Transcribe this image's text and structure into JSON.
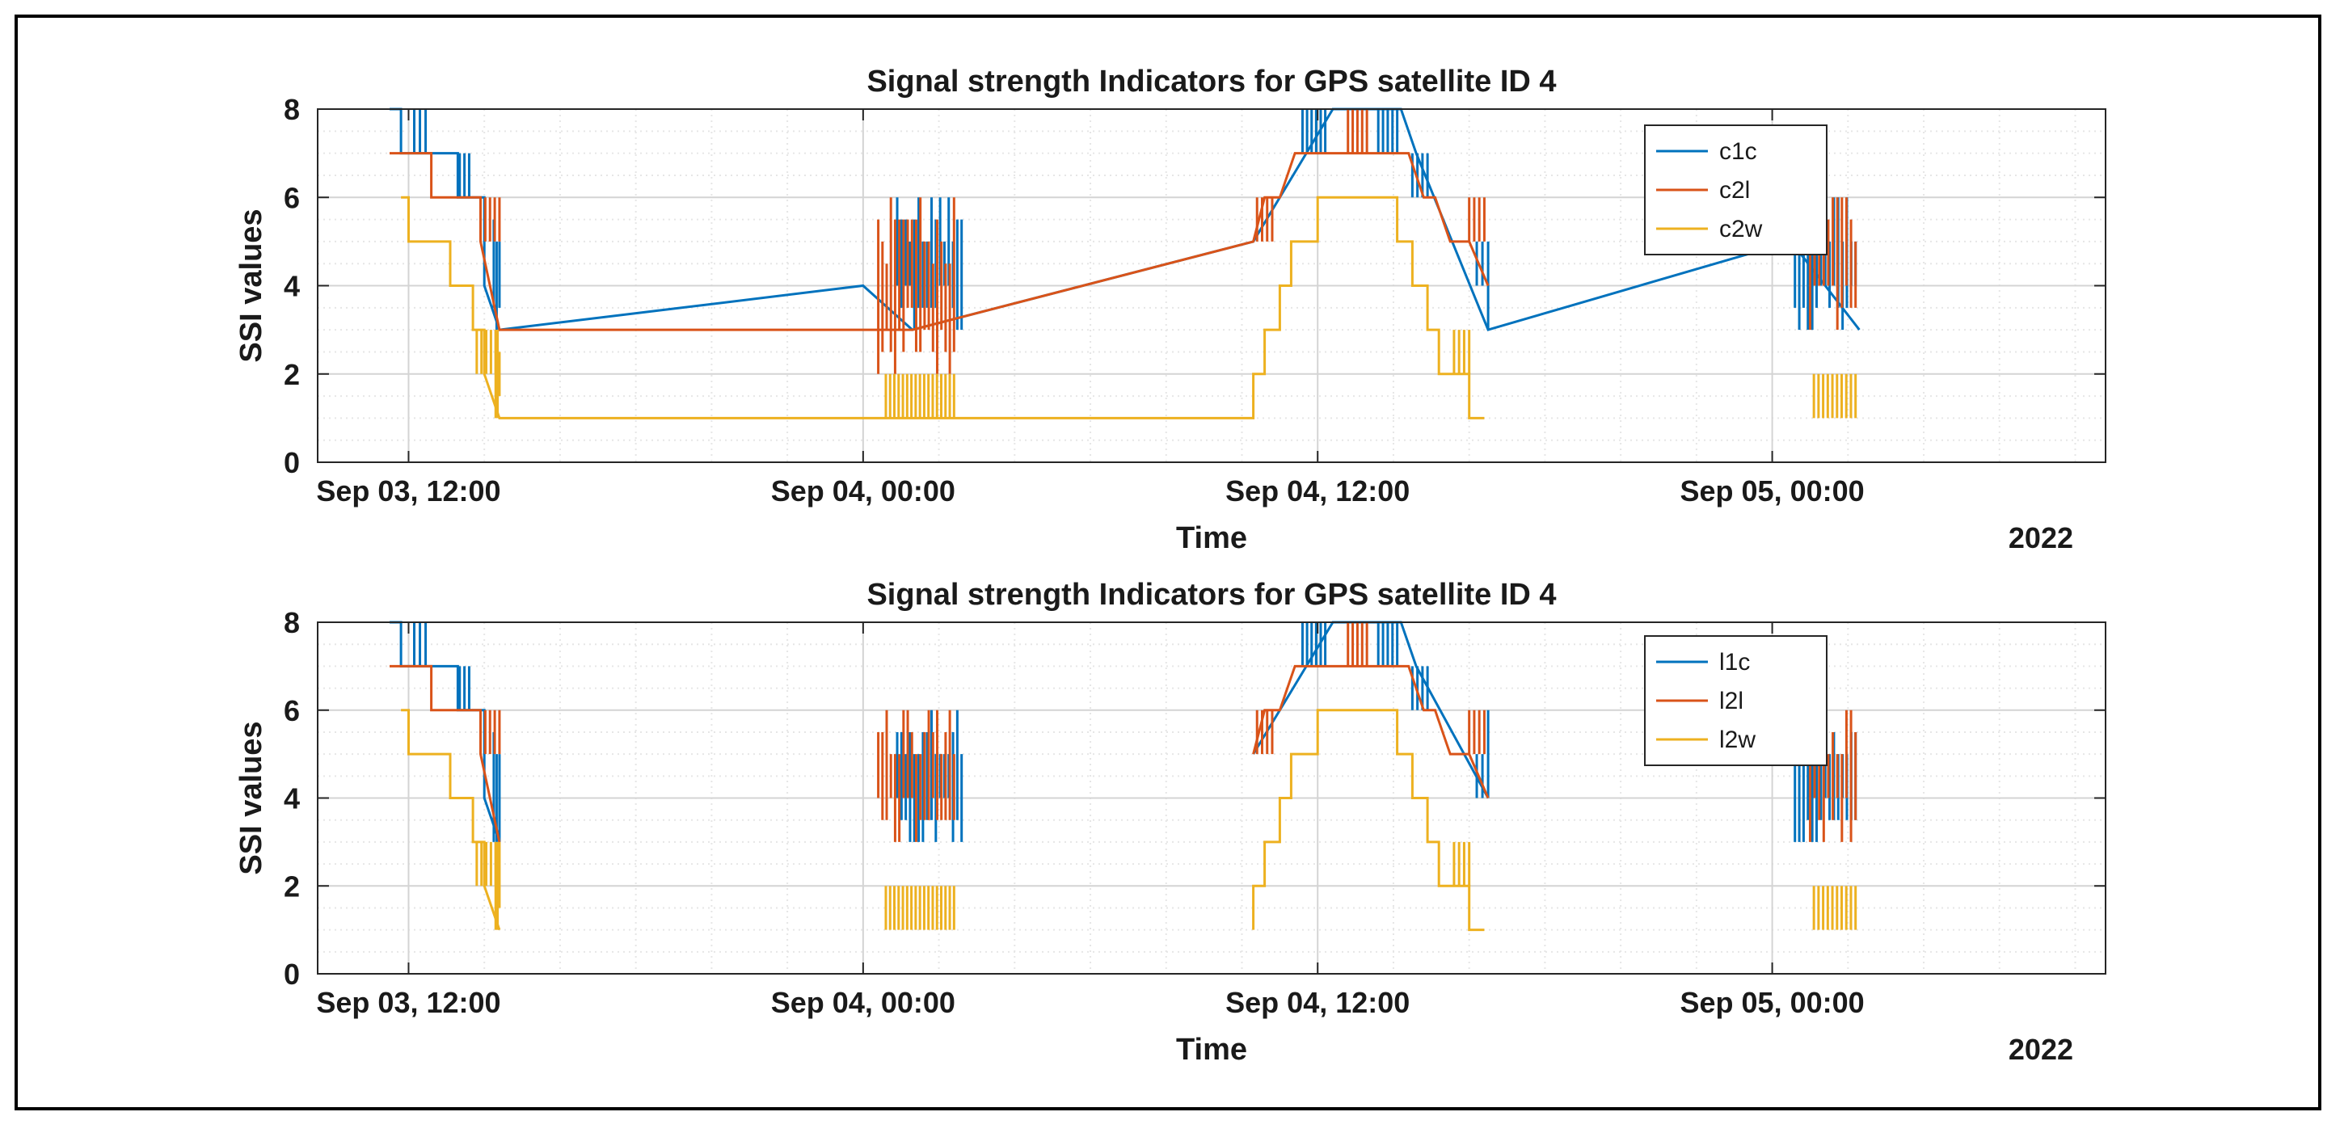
{
  "colors": {
    "c1": "#0072BD",
    "c2": "#D95319",
    "c3": "#EDB120",
    "grid": "#d4d4d4",
    "minorGrid": "#e6e6e6",
    "axis": "#262626"
  },
  "chart_data": [
    {
      "type": "line",
      "title": "Signal strength Indicators for GPS satellite ID 4",
      "xlabel": "Time",
      "ylabel": "SSI values",
      "year_label": "2022",
      "x_units": "hours since Sep 03, 00:00",
      "xlim": [
        9.6,
        56.8
      ],
      "ylim": [
        0,
        8
      ],
      "y_ticks": [
        0,
        2,
        4,
        6,
        8
      ],
      "x_ticks": [
        {
          "value": 12,
          "label": "Sep 03, 12:00"
        },
        {
          "value": 24,
          "label": "Sep 04, 00:00"
        },
        {
          "value": 36,
          "label": "Sep 04, 12:00"
        },
        {
          "value": 48,
          "label": "Sep 05, 00:00"
        }
      ],
      "series": [
        {
          "name": "c1c",
          "color_key": "c1",
          "x": [
            11.5,
            11.8,
            11.8,
            12.9,
            12.9,
            13.3,
            13.3,
            14.0,
            14.0,
            14.4,
            24.0,
            25.3,
            34.3,
            36.4,
            37.2,
            38.2,
            38.6,
            40.5,
            48.5,
            50.3
          ],
          "y": [
            8,
            8,
            7,
            7,
            7,
            7,
            6,
            6,
            4,
            3,
            4,
            3,
            5,
            8,
            8,
            8,
            7,
            3,
            5,
            3
          ],
          "bursts": [
            {
              "x0": 12.15,
              "x1": 12.45,
              "min": 7,
              "max": 8
            },
            {
              "x0": 13.35,
              "x1": 13.6,
              "min": 6,
              "max": 7
            },
            {
              "x0": 14.25,
              "x1": 14.4,
              "min": 3,
              "max": 6
            },
            {
              "x0": 24.9,
              "x1": 26.6,
              "min": 3,
              "max": 6
            },
            {
              "x0": 35.6,
              "x1": 36.2,
              "min": 7,
              "max": 8
            },
            {
              "x0": 37.6,
              "x1": 38.1,
              "min": 7,
              "max": 8
            },
            {
              "x0": 38.5,
              "x1": 38.9,
              "min": 6,
              "max": 7
            },
            {
              "x0": 40.2,
              "x1": 40.5,
              "min": 3,
              "max": 6
            },
            {
              "x0": 48.6,
              "x1": 50.2,
              "min": 3,
              "max": 6
            }
          ]
        },
        {
          "name": "c2l",
          "color_key": "c2",
          "x": [
            11.5,
            12.6,
            12.6,
            13.0,
            13.0,
            13.9,
            13.9,
            14.4,
            24.3,
            25.3,
            34.3,
            34.6,
            35.0,
            35.4,
            35.8,
            38.0,
            38.4,
            38.8,
            39.1,
            39.5,
            40.0,
            40.5
          ],
          "y": [
            7,
            7,
            6,
            6,
            6,
            6,
            5,
            3,
            3,
            3,
            5,
            6,
            6,
            7,
            7,
            7,
            7,
            6,
            6,
            5,
            5,
            4
          ],
          "bursts": [
            {
              "x0": 13.9,
              "x1": 14.4,
              "min": 5,
              "max": 6
            },
            {
              "x0": 24.4,
              "x1": 26.4,
              "min": 2,
              "max": 6
            },
            {
              "x0": 34.4,
              "x1": 34.8,
              "min": 5,
              "max": 6
            },
            {
              "x0": 36.8,
              "x1": 37.3,
              "min": 7,
              "max": 8
            },
            {
              "x0": 40.0,
              "x1": 40.4,
              "min": 5,
              "max": 6
            },
            {
              "x0": 49.0,
              "x1": 50.2,
              "min": 3,
              "max": 6
            }
          ]
        },
        {
          "name": "c2w",
          "color_key": "c3",
          "x": [
            11.8,
            11.8,
            12.0,
            12.0,
            12.8,
            12.8,
            13.1,
            13.1,
            13.7,
            13.7,
            14.0,
            14.0,
            14.4,
            34.3,
            34.3,
            34.6,
            34.6,
            35.0,
            35.0,
            35.3,
            35.3,
            35.7,
            35.7,
            36.0,
            36.0,
            37.8,
            37.8,
            38.1,
            38.1,
            38.5,
            38.5,
            38.9,
            38.9,
            39.2,
            39.2,
            39.6,
            39.6,
            40.0,
            40.0,
            40.4
          ],
          "y": [
            6,
            6,
            6,
            5,
            5,
            5,
            5,
            4,
            4,
            3,
            3,
            2,
            1,
            1,
            2,
            2,
            3,
            3,
            4,
            4,
            5,
            5,
            5,
            5,
            6,
            6,
            6,
            6,
            5,
            5,
            4,
            4,
            3,
            3,
            2,
            2,
            2,
            2,
            1,
            1
          ],
          "bursts": [
            {
              "x0": 13.8,
              "x1": 14.3,
              "min": 2,
              "max": 3
            },
            {
              "x0": 14.3,
              "x1": 14.4,
              "min": 1,
              "max": 3
            },
            {
              "x0": 24.6,
              "x1": 26.4,
              "min": 1,
              "max": 2
            },
            {
              "x0": 39.6,
              "x1": 40.0,
              "min": 2,
              "max": 3
            },
            {
              "x0": 49.1,
              "x1": 50.2,
              "min": 1,
              "max": 2
            }
          ]
        }
      ],
      "legend": [
        "c1c",
        "c2l",
        "c2w"
      ]
    },
    {
      "type": "line",
      "title": "Signal strength Indicators for GPS satellite ID 4",
      "xlabel": "Time",
      "ylabel": "SSI values",
      "year_label": "2022",
      "x_units": "hours since Sep 03, 00:00",
      "xlim": [
        9.6,
        56.8
      ],
      "ylim": [
        0,
        8
      ],
      "y_ticks": [
        0,
        2,
        4,
        6,
        8
      ],
      "x_ticks": [
        {
          "value": 12,
          "label": "Sep 03, 12:00"
        },
        {
          "value": 24,
          "label": "Sep 04, 00:00"
        },
        {
          "value": 36,
          "label": "Sep 04, 12:00"
        },
        {
          "value": 48,
          "label": "Sep 05, 00:00"
        }
      ],
      "series": [
        {
          "name": "l1c",
          "color_key": "c1",
          "x": [
            11.5,
            11.8,
            11.8,
            12.9,
            12.9,
            13.3,
            13.3,
            14.0,
            14.0,
            14.4
          ],
          "y": [
            8,
            8,
            7,
            7,
            7,
            7,
            6,
            6,
            4,
            3
          ],
          "segments": [
            {
              "x": [
                34.3,
                36.4,
                37.2,
                38.2,
                38.6,
                40.5
              ],
              "y": [
                5,
                8,
                8,
                8,
                7,
                4
              ]
            }
          ],
          "bursts": [
            {
              "x0": 12.15,
              "x1": 12.45,
              "min": 7,
              "max": 8
            },
            {
              "x0": 13.35,
              "x1": 13.6,
              "min": 6,
              "max": 7
            },
            {
              "x0": 14.25,
              "x1": 14.4,
              "min": 3,
              "max": 6
            },
            {
              "x0": 24.9,
              "x1": 26.6,
              "min": 3,
              "max": 6
            },
            {
              "x0": 35.6,
              "x1": 36.2,
              "min": 7,
              "max": 8
            },
            {
              "x0": 37.6,
              "x1": 38.1,
              "min": 7,
              "max": 8
            },
            {
              "x0": 38.5,
              "x1": 38.9,
              "min": 6,
              "max": 7
            },
            {
              "x0": 40.2,
              "x1": 40.5,
              "min": 3,
              "max": 6
            },
            {
              "x0": 48.6,
              "x1": 50.2,
              "min": 3,
              "max": 6
            }
          ]
        },
        {
          "name": "l2l",
          "color_key": "c2",
          "x": [
            11.5,
            12.6,
            12.6,
            13.0,
            13.0,
            13.9,
            13.9,
            14.4
          ],
          "y": [
            7,
            7,
            6,
            6,
            6,
            6,
            5,
            3
          ],
          "segments": [
            {
              "x": [
                34.3,
                34.6,
                35.0,
                35.4,
                35.8,
                38.0,
                38.4,
                38.8,
                39.1,
                39.5,
                40.0,
                40.5
              ],
              "y": [
                5,
                6,
                6,
                7,
                7,
                7,
                7,
                6,
                6,
                5,
                5,
                4
              ]
            }
          ],
          "bursts": [
            {
              "x0": 13.9,
              "x1": 14.4,
              "min": 5,
              "max": 6
            },
            {
              "x0": 24.4,
              "x1": 26.4,
              "min": 3,
              "max": 6
            },
            {
              "x0": 34.4,
              "x1": 34.8,
              "min": 5,
              "max": 6
            },
            {
              "x0": 36.8,
              "x1": 37.3,
              "min": 7,
              "max": 8
            },
            {
              "x0": 40.0,
              "x1": 40.4,
              "min": 5,
              "max": 6
            },
            {
              "x0": 49.0,
              "x1": 50.2,
              "min": 3,
              "max": 6
            }
          ]
        },
        {
          "name": "l2w",
          "color_key": "c3",
          "x": [
            11.8,
            11.8,
            12.0,
            12.0,
            12.8,
            12.8,
            13.1,
            13.1,
            13.7,
            13.7,
            14.0,
            14.0,
            14.4
          ],
          "y": [
            6,
            6,
            6,
            5,
            5,
            5,
            5,
            4,
            4,
            3,
            3,
            2,
            1
          ],
          "segments": [
            {
              "x": [
                34.3,
                34.3,
                34.6,
                34.6,
                35.0,
                35.0,
                35.3,
                35.3,
                35.7,
                35.7,
                36.0,
                36.0,
                37.8,
                37.8,
                38.1,
                38.1,
                38.5,
                38.5,
                38.9,
                38.9,
                39.2,
                39.2,
                39.6,
                39.6,
                40.0,
                40.0,
                40.4
              ],
              "y": [
                1,
                2,
                2,
                3,
                3,
                4,
                4,
                5,
                5,
                5,
                5,
                6,
                6,
                6,
                6,
                5,
                5,
                4,
                4,
                3,
                3,
                2,
                2,
                2,
                2,
                1,
                1
              ]
            }
          ],
          "bursts": [
            {
              "x0": 13.8,
              "x1": 14.3,
              "min": 2,
              "max": 3
            },
            {
              "x0": 14.3,
              "x1": 14.4,
              "min": 1,
              "max": 3
            },
            {
              "x0": 24.6,
              "x1": 26.4,
              "min": 1,
              "max": 2
            },
            {
              "x0": 39.6,
              "x1": 40.0,
              "min": 2,
              "max": 3
            },
            {
              "x0": 49.1,
              "x1": 50.2,
              "min": 1,
              "max": 2
            }
          ]
        }
      ],
      "legend": [
        "l1c",
        "l2l",
        "l2w"
      ]
    }
  ]
}
